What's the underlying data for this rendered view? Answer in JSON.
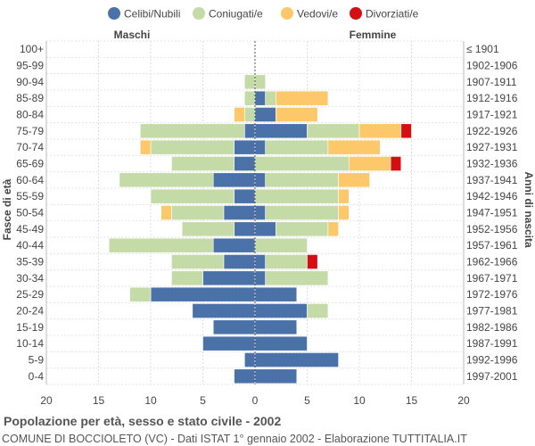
{
  "chart_data": {
    "type": "bar",
    "orientation": "horizontal-population-pyramid",
    "title": "Popolazione per età, sesso e stato civile - 2002",
    "subtitle": "COMUNE DI BOCCIOLETO (VC) - Dati ISTAT 1° gennaio 2002 - Elaborazione TUTTITALIA.IT",
    "left_label": "Maschi",
    "right_label": "Femmine",
    "ylabel_left": "Fasce di età",
    "ylabel_right": "Anni di nascita",
    "xlim": [
      -20,
      20
    ],
    "xticks": [
      20,
      15,
      10,
      5,
      0,
      5,
      10,
      15,
      20
    ],
    "legend": [
      {
        "name": "Celibi/Nubili",
        "color": "#4a72a8"
      },
      {
        "name": "Coniugati/e",
        "color": "#c4dba8"
      },
      {
        "name": "Vedovi/e",
        "color": "#fcc86a"
      },
      {
        "name": "Divorziati/e",
        "color": "#d40f14"
      }
    ],
    "age_groups": [
      "100+",
      "95-99",
      "90-94",
      "85-89",
      "80-84",
      "75-79",
      "70-74",
      "65-69",
      "60-64",
      "55-59",
      "50-54",
      "45-49",
      "40-44",
      "35-39",
      "30-34",
      "25-29",
      "20-24",
      "15-19",
      "10-14",
      "5-9",
      "0-4"
    ],
    "birth_years": [
      "≤ 1901",
      "1902-1906",
      "1907-1911",
      "1912-1916",
      "1917-1921",
      "1922-1926",
      "1927-1931",
      "1932-1936",
      "1937-1941",
      "1942-1946",
      "1947-1951",
      "1952-1956",
      "1957-1961",
      "1962-1966",
      "1967-1971",
      "1972-1976",
      "1977-1981",
      "1982-1986",
      "1987-1991",
      "1992-1996",
      "1997-2001"
    ],
    "males": {
      "celibi": [
        0,
        0,
        0,
        0,
        0,
        1,
        2,
        2,
        4,
        2,
        3,
        2,
        4,
        3,
        5,
        10,
        6,
        4,
        5,
        1,
        2
      ],
      "coniugati": [
        0,
        0,
        1,
        1,
        1,
        10,
        8,
        6,
        9,
        8,
        5,
        5,
        10,
        5,
        3,
        2,
        0,
        0,
        0,
        0,
        0
      ],
      "vedovi": [
        0,
        0,
        0,
        0,
        1,
        0,
        1,
        0,
        0,
        0,
        1,
        0,
        0,
        0,
        0,
        0,
        0,
        0,
        0,
        0,
        0
      ],
      "divorziati": [
        0,
        0,
        0,
        0,
        0,
        0,
        0,
        0,
        0,
        0,
        0,
        0,
        0,
        0,
        0,
        0,
        0,
        0,
        0,
        0,
        0
      ]
    },
    "females": {
      "nubili": [
        0,
        0,
        0,
        1,
        2,
        5,
        1,
        0,
        1,
        0,
        1,
        2,
        0,
        1,
        1,
        4,
        5,
        4,
        5,
        8,
        4
      ],
      "coniugate": [
        0,
        0,
        1,
        1,
        0,
        5,
        6,
        9,
        7,
        8,
        7,
        5,
        5,
        4,
        6,
        0,
        2,
        0,
        0,
        0,
        0
      ],
      "vedove": [
        0,
        0,
        0,
        5,
        4,
        4,
        5,
        4,
        3,
        1,
        1,
        1,
        0,
        0,
        0,
        0,
        0,
        0,
        0,
        0,
        0
      ],
      "divorziate": [
        0,
        0,
        0,
        0,
        0,
        1,
        0,
        1,
        0,
        0,
        0,
        0,
        0,
        1,
        0,
        0,
        0,
        0,
        0,
        0,
        0
      ]
    }
  }
}
